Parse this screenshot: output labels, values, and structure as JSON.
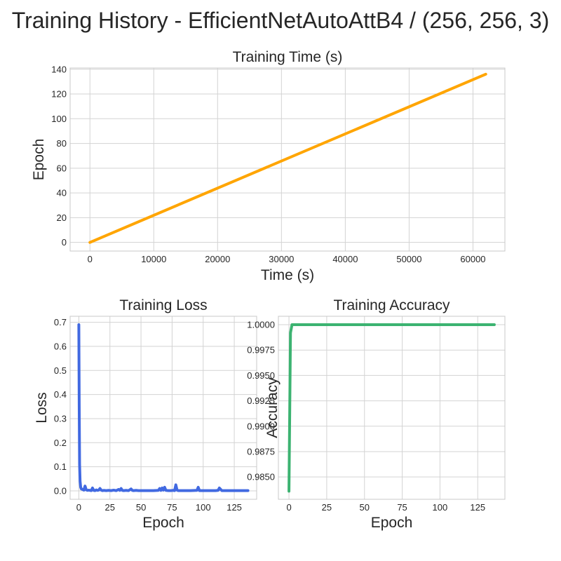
{
  "title": "Training History - EfficientNetAutoAttB4 / (256, 256, 3)",
  "chart_data": [
    {
      "id": "time",
      "type": "line",
      "title": "Training Time (s)",
      "xlabel": "Time (s)",
      "ylabel": "Epoch",
      "xlim": [
        -3100,
        65000
      ],
      "ylim": [
        -7,
        141
      ],
      "xticks": [
        0,
        10000,
        20000,
        30000,
        40000,
        50000,
        60000
      ],
      "yticks": [
        0,
        20,
        40,
        60,
        80,
        100,
        120,
        140
      ],
      "tick_decimals": 0,
      "grid": true,
      "color": "#ffa500",
      "series": [
        {
          "x": [
            0,
            62000
          ],
          "y": [
            0,
            136
          ]
        }
      ]
    },
    {
      "id": "loss",
      "type": "line",
      "title": "Training Loss",
      "xlabel": "Epoch",
      "ylabel": "Loss",
      "xlim": [
        -7,
        143
      ],
      "ylim": [
        -0.035,
        0.725
      ],
      "xticks": [
        0,
        25,
        50,
        75,
        100,
        125
      ],
      "yticks": [
        0.0,
        0.1,
        0.2,
        0.3,
        0.4,
        0.5,
        0.6,
        0.7
      ],
      "tick_decimals": 1,
      "grid": true,
      "color": "#4169e1",
      "series": [
        {
          "x": [
            0,
            0.3,
            0.6,
            1,
            1.5,
            2,
            3,
            4,
            5,
            6,
            7,
            8,
            9,
            10,
            11,
            12,
            13,
            14,
            15,
            16,
            17,
            18,
            19,
            20,
            22,
            24,
            26,
            28,
            30,
            32,
            33,
            34,
            35,
            36,
            38,
            40,
            42,
            43,
            44,
            46,
            48,
            50,
            55,
            60,
            64,
            65,
            66,
            67,
            68,
            69,
            70,
            72,
            74,
            76,
            77,
            78,
            79,
            80,
            82,
            85,
            90,
            95,
            96,
            97,
            100,
            105,
            110,
            112,
            113,
            115,
            120,
            125,
            130,
            136
          ],
          "y": [
            0.69,
            0.35,
            0.11,
            0.04,
            0.015,
            0.008,
            0.006,
            0.003,
            0.02,
            0.004,
            0.002,
            0.003,
            0.002,
            0.001,
            0.012,
            0.002,
            0.001,
            0.004,
            0.002,
            0.003,
            0.01,
            0.003,
            0.001,
            0.002,
            0.001,
            0.002,
            0.001,
            0.003,
            0.001,
            0.006,
            0.002,
            0.01,
            0.002,
            0.001,
            0.002,
            0.001,
            0.008,
            0.002,
            0.001,
            0.002,
            0.001,
            0.001,
            0.001,
            0.001,
            0.002,
            0.01,
            0.002,
            0.012,
            0.003,
            0.015,
            0.002,
            0.001,
            0.001,
            0.002,
            0.001,
            0.025,
            0.003,
            0.001,
            0.001,
            0.001,
            0.001,
            0.002,
            0.015,
            0.001,
            0.001,
            0.001,
            0.001,
            0.002,
            0.012,
            0.001,
            0.001,
            0.001,
            0.001,
            0.001
          ]
        }
      ]
    },
    {
      "id": "acc",
      "type": "line",
      "title": "Training Accuracy",
      "xlabel": "Epoch",
      "ylabel": "Accuracy",
      "xlim": [
        -7,
        143
      ],
      "ylim": [
        0.9828,
        1.00083
      ],
      "xticks": [
        0,
        25,
        50,
        75,
        100,
        125
      ],
      "yticks": [
        0.985,
        0.9875,
        0.99,
        0.9925,
        0.995,
        0.9975,
        1.0
      ],
      "tick_decimals": 4,
      "grid": true,
      "color": "#3cb371",
      "series": [
        {
          "x": [
            0,
            1,
            2,
            3,
            136
          ],
          "y": [
            0.9836,
            0.9992,
            1.0,
            1.0,
            1.0
          ]
        }
      ]
    }
  ]
}
